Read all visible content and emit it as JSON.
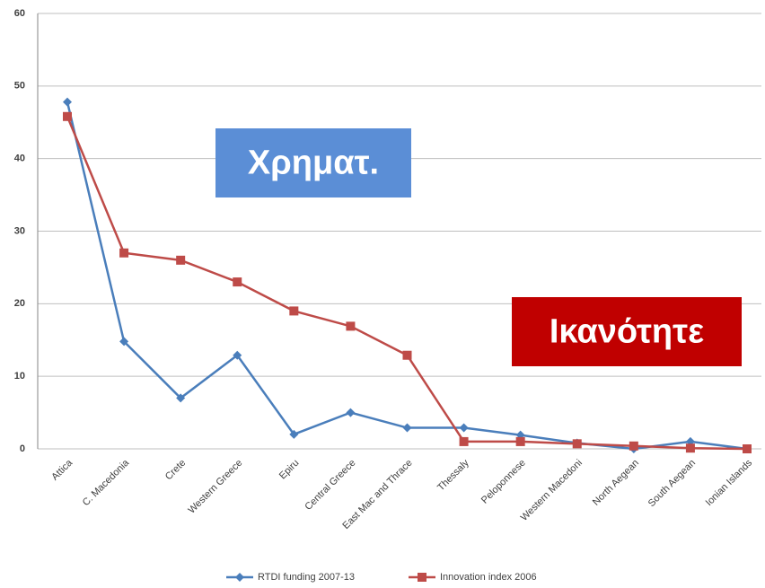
{
  "chart_data": {
    "type": "line",
    "categories": [
      "Attica",
      "C. Macedonia",
      "Crete",
      "Western Greece",
      "Epiru",
      "Central Greece",
      "East Mac and Thrace",
      "Thessaly",
      "Peloponnese",
      "Western Macedoni",
      "North Aegean",
      "South Aegean",
      "Ionian Islands"
    ],
    "series": [
      {
        "name": "RTDI funding 2007-13",
        "color": "#4a7ebb",
        "marker": "diamond",
        "values": [
          47.8,
          14.8,
          7,
          12.9,
          2,
          5,
          2.9,
          2.9,
          1.9,
          0.8,
          0,
          1,
          0
        ]
      },
      {
        "name": "Innovation index 2006",
        "color": "#be4b48",
        "marker": "square",
        "values": [
          45.8,
          27,
          26,
          23,
          19,
          16.9,
          12.9,
          1,
          1,
          0.7,
          0.4,
          0.1,
          0
        ]
      }
    ],
    "ylim": [
      0,
      60
    ],
    "yticks": [
      0,
      10,
      20,
      30,
      40,
      50,
      60
    ],
    "grid": true,
    "annotations": [
      {
        "text": "Χρηματ.",
        "color": "#5b8ed6"
      },
      {
        "text": "Ικανότητε",
        "color": "#c00000"
      }
    ]
  }
}
